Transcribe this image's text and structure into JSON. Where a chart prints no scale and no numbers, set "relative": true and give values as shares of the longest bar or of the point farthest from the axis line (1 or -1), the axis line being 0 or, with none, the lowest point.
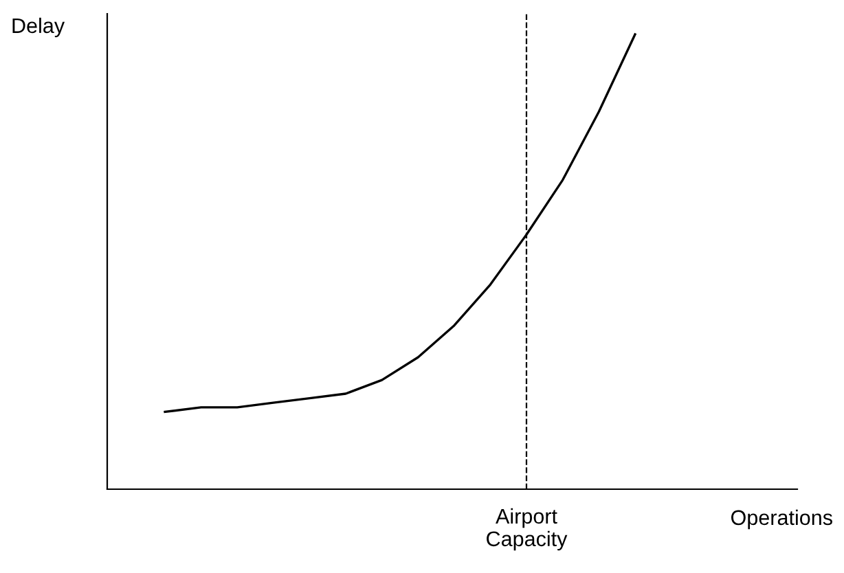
{
  "chart_data": {
    "type": "line",
    "relative": true,
    "xlabel": "Operations",
    "ylabel": "Delay",
    "categories": [
      null,
      null,
      null,
      null,
      null,
      null,
      null,
      null,
      null,
      null,
      null,
      null,
      null,
      null
    ],
    "series": [
      {
        "color": "#000000",
        "values": [
          0.17,
          0.18,
          0.18,
          0.19,
          0.2,
          0.21,
          0.24,
          0.29,
          0.36,
          0.45,
          0.56,
          0.68,
          0.83,
          1
        ]
      }
    ],
    "annotations": [
      "Airport\nCapacity"
    ],
    "marker": "none",
    "line_style": "solid"
  }
}
